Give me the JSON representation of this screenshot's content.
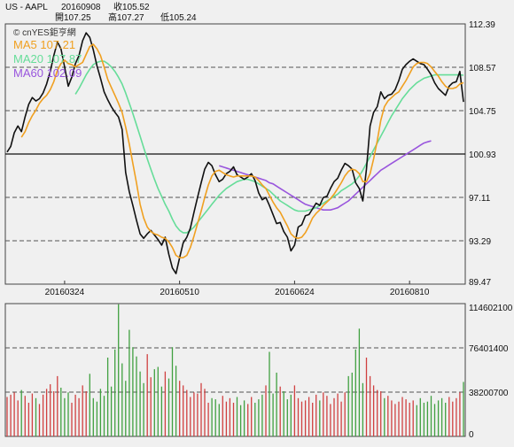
{
  "header": {
    "symbol": "US - AAPL",
    "date": "20160908",
    "close_label": "收105.52",
    "open_label": "開107.25",
    "high_label": "高107.27",
    "low_label": "低105.24"
  },
  "watermark": "© cnYES鉅亨網",
  "legend": [
    {
      "label": "MA5",
      "value": "107.21",
      "color": "#f0a020"
    },
    {
      "label": "MA20",
      "value": "107.87",
      "color": "#66dd99"
    },
    {
      "label": "MA60",
      "value": "102.09",
      "color": "#9955dd"
    }
  ],
  "colors": {
    "price": "#111111",
    "ma5": "#f0a020",
    "ma20": "#66dd99",
    "ma60": "#9955dd",
    "vol_up": "#d04040",
    "vol_down": "#40a040",
    "grid": "#555555",
    "background": "#f0f0f0"
  },
  "chart_data": [
    {
      "type": "line",
      "name": "price",
      "x_ticks": [
        "20160324",
        "20160510",
        "20160624",
        "20160810"
      ],
      "x_tick_index": [
        16,
        48,
        80,
        112
      ],
      "n": 128,
      "ylim": [
        89.47,
        112.39
      ],
      "y_ticks": [
        "112.39",
        "108.57",
        "104.75",
        "100.93",
        "97.11",
        "93.29",
        "89.47"
      ],
      "y_tick_values": [
        112.39,
        108.57,
        104.75,
        100.93,
        97.11,
        93.29,
        89.47
      ],
      "dashed_levels": [
        108.57,
        104.75,
        97.11,
        93.29
      ],
      "solid_level": 100.93,
      "close": [
        101.1,
        101.6,
        102.8,
        103.4,
        102.9,
        104.2,
        105.3,
        105.9,
        105.6,
        105.8,
        106.3,
        107.1,
        108.2,
        109.6,
        110.8,
        110.2,
        108.6,
        106.9,
        107.7,
        108.9,
        109.6,
        110.9,
        111.6,
        111.2,
        110.1,
        108.7,
        107.6,
        106.4,
        105.7,
        105.1,
        104.6,
        104.2,
        103.1,
        99.3,
        97.6,
        96.4,
        95.1,
        93.9,
        93.5,
        93.9,
        94.2,
        93.8,
        93.4,
        92.9,
        93.6,
        92.1,
        90.9,
        90.4,
        91.8,
        93.1,
        93.6,
        94.4,
        95.8,
        97.1,
        98.4,
        99.6,
        100.2,
        99.9,
        99.1,
        98.5,
        98.7,
        99.2,
        99.4,
        99.8,
        99.1,
        98.9,
        98.7,
        98.9,
        99.2,
        98.6,
        97.5,
        96.9,
        97.1,
        96.4,
        95.6,
        94.8,
        94.9,
        94.1,
        93.6,
        92.4,
        92.9,
        94.5,
        94.7,
        95.5,
        95.6,
        96.1,
        96.6,
        96.4,
        97.1,
        97.2,
        97.9,
        98.5,
        98.8,
        99.5,
        100.1,
        99.9,
        99.6,
        98.4,
        97.9,
        96.8,
        99.6,
        103.4,
        104.6,
        105.1,
        106.4,
        105.8,
        106.1,
        106.2,
        106.6,
        107.4,
        108.4,
        108.8,
        109.1,
        109.3,
        109.1,
        108.9,
        108.8,
        108.4,
        107.9,
        107.2,
        106.7,
        106.4,
        106.1,
        106.9,
        107.2,
        107.3,
        108.2,
        105.52
      ],
      "ma5": [
        null,
        null,
        null,
        null,
        102.4,
        102.9,
        103.7,
        104.3,
        104.8,
        105.4,
        105.8,
        106.1,
        106.6,
        107.3,
        108.3,
        108.9,
        109.2,
        108.9,
        108.8,
        108.6,
        108.8,
        109.0,
        109.7,
        110.4,
        110.6,
        110.2,
        109.6,
        108.6,
        107.5,
        106.8,
        106.1,
        105.4,
        104.6,
        103.3,
        101.8,
        100.1,
        98.4,
        96.5,
        95.3,
        94.5,
        94.1,
        93.9,
        93.8,
        93.6,
        93.5,
        93.2,
        92.7,
        92.0,
        91.8,
        91.8,
        92.0,
        92.7,
        93.7,
        94.8,
        95.9,
        97.1,
        98.2,
        99.0,
        99.4,
        99.5,
        99.3,
        99.1,
        99.0,
        98.9,
        99.0,
        99.0,
        99.0,
        99.0,
        99.0,
        98.9,
        98.6,
        98.2,
        97.9,
        97.3,
        96.7,
        96.2,
        95.8,
        95.2,
        94.6,
        93.9,
        93.6,
        93.5,
        93.6,
        94.0,
        94.6,
        95.3,
        95.7,
        96.0,
        96.4,
        96.7,
        97.0,
        97.4,
        97.9,
        98.4,
        99.0,
        99.4,
        99.6,
        99.5,
        99.2,
        98.5,
        98.5,
        99.2,
        100.5,
        102.1,
        103.9,
        105.1,
        105.6,
        105.9,
        106.2,
        106.4,
        106.9,
        107.4,
        108.0,
        108.6,
        108.9,
        109.0,
        109.0,
        108.9,
        108.6,
        108.2,
        107.8,
        107.3,
        106.9,
        106.7,
        106.7,
        106.8,
        107.1,
        107.21
      ],
      "ma20": [
        null,
        null,
        null,
        null,
        null,
        null,
        null,
        null,
        null,
        null,
        null,
        null,
        null,
        null,
        null,
        null,
        null,
        null,
        null,
        106.2,
        106.7,
        107.3,
        107.9,
        108.4,
        108.8,
        109.0,
        109.1,
        109.1,
        108.9,
        108.6,
        108.2,
        107.7,
        107.1,
        106.3,
        105.4,
        104.5,
        103.5,
        102.5,
        101.5,
        100.5,
        99.6,
        98.7,
        97.9,
        97.2,
        96.5,
        95.9,
        95.2,
        94.6,
        94.2,
        94.0,
        94.0,
        94.2,
        94.5,
        94.9,
        95.3,
        95.7,
        96.1,
        96.5,
        96.9,
        97.3,
        97.6,
        97.9,
        98.1,
        98.3,
        98.5,
        98.6,
        98.7,
        98.7,
        98.6,
        98.5,
        98.3,
        98.1,
        97.9,
        97.7,
        97.4,
        97.1,
        96.8,
        96.6,
        96.4,
        96.2,
        96.0,
        95.9,
        95.9,
        95.9,
        96.0,
        96.1,
        96.2,
        96.4,
        96.6,
        96.8,
        97.0,
        97.2,
        97.4,
        97.7,
        97.9,
        98.1,
        98.3,
        98.6,
        99.0,
        99.5,
        100.1,
        100.7,
        101.3,
        101.9,
        102.5,
        103.1,
        103.7,
        104.3,
        104.8,
        105.3,
        105.8,
        106.2,
        106.6,
        106.9,
        107.2,
        107.4,
        107.6,
        107.7,
        107.8,
        107.9,
        107.9,
        107.9,
        107.9,
        107.9,
        107.9,
        107.9,
        107.9,
        107.87
      ],
      "ma60_start": 59,
      "ma60": [
        99.9,
        99.8,
        99.7,
        99.6,
        99.5,
        99.4,
        99.3,
        99.2,
        99.1,
        99.0,
        98.9,
        98.8,
        98.7,
        98.6,
        98.4,
        98.3,
        98.1,
        97.9,
        97.7,
        97.5,
        97.3,
        97.1,
        96.9,
        96.7,
        96.5,
        96.4,
        96.3,
        96.2,
        96.1,
        96.0,
        96.0,
        96.0,
        96.1,
        96.2,
        96.4,
        96.6,
        96.8,
        97.1,
        97.4,
        97.7,
        98.0,
        98.3,
        98.6,
        98.9,
        99.2,
        99.5,
        99.7,
        99.9,
        100.1,
        100.3,
        100.5,
        100.7,
        100.9,
        101.1,
        101.3,
        101.5,
        101.7,
        101.9,
        102.0,
        102.09
      ]
    },
    {
      "type": "bar",
      "name": "volume",
      "ylim": [
        0,
        114602100
      ],
      "y_ticks": [
        "114602100",
        "76401400",
        "38200700",
        "0"
      ],
      "y_tick_values": [
        114602100,
        76401400,
        38200700,
        0
      ],
      "dashed_levels": [
        76401400,
        38200700
      ],
      "volume_millions": [
        34,
        36,
        38,
        31,
        40,
        35,
        29,
        37,
        33,
        28,
        36,
        41,
        45,
        39,
        52,
        42,
        33,
        38,
        29,
        36,
        33,
        44,
        39,
        54,
        33,
        30,
        41,
        35,
        68,
        43,
        75,
        114,
        63,
        48,
        92,
        77,
        69,
        56,
        46,
        71,
        51,
        58,
        60,
        43,
        56,
        50,
        77,
        61,
        48,
        44,
        40,
        34,
        38,
        37,
        46,
        41,
        29,
        33,
        32,
        28,
        35,
        30,
        33,
        29,
        34,
        27,
        31,
        28,
        34,
        29,
        32,
        36,
        44,
        73,
        37,
        55,
        43,
        39,
        32,
        36,
        44,
        33,
        30,
        31,
        34,
        29,
        36,
        31,
        38,
        35,
        28,
        33,
        37,
        30,
        38,
        52,
        55,
        75,
        93,
        46,
        68,
        52,
        44,
        40,
        39,
        33,
        35,
        31,
        28,
        30,
        34,
        32,
        29,
        31,
        27,
        33,
        29,
        30,
        35,
        28,
        31,
        33,
        29,
        34,
        30,
        33,
        38,
        47
      ]
    }
  ]
}
